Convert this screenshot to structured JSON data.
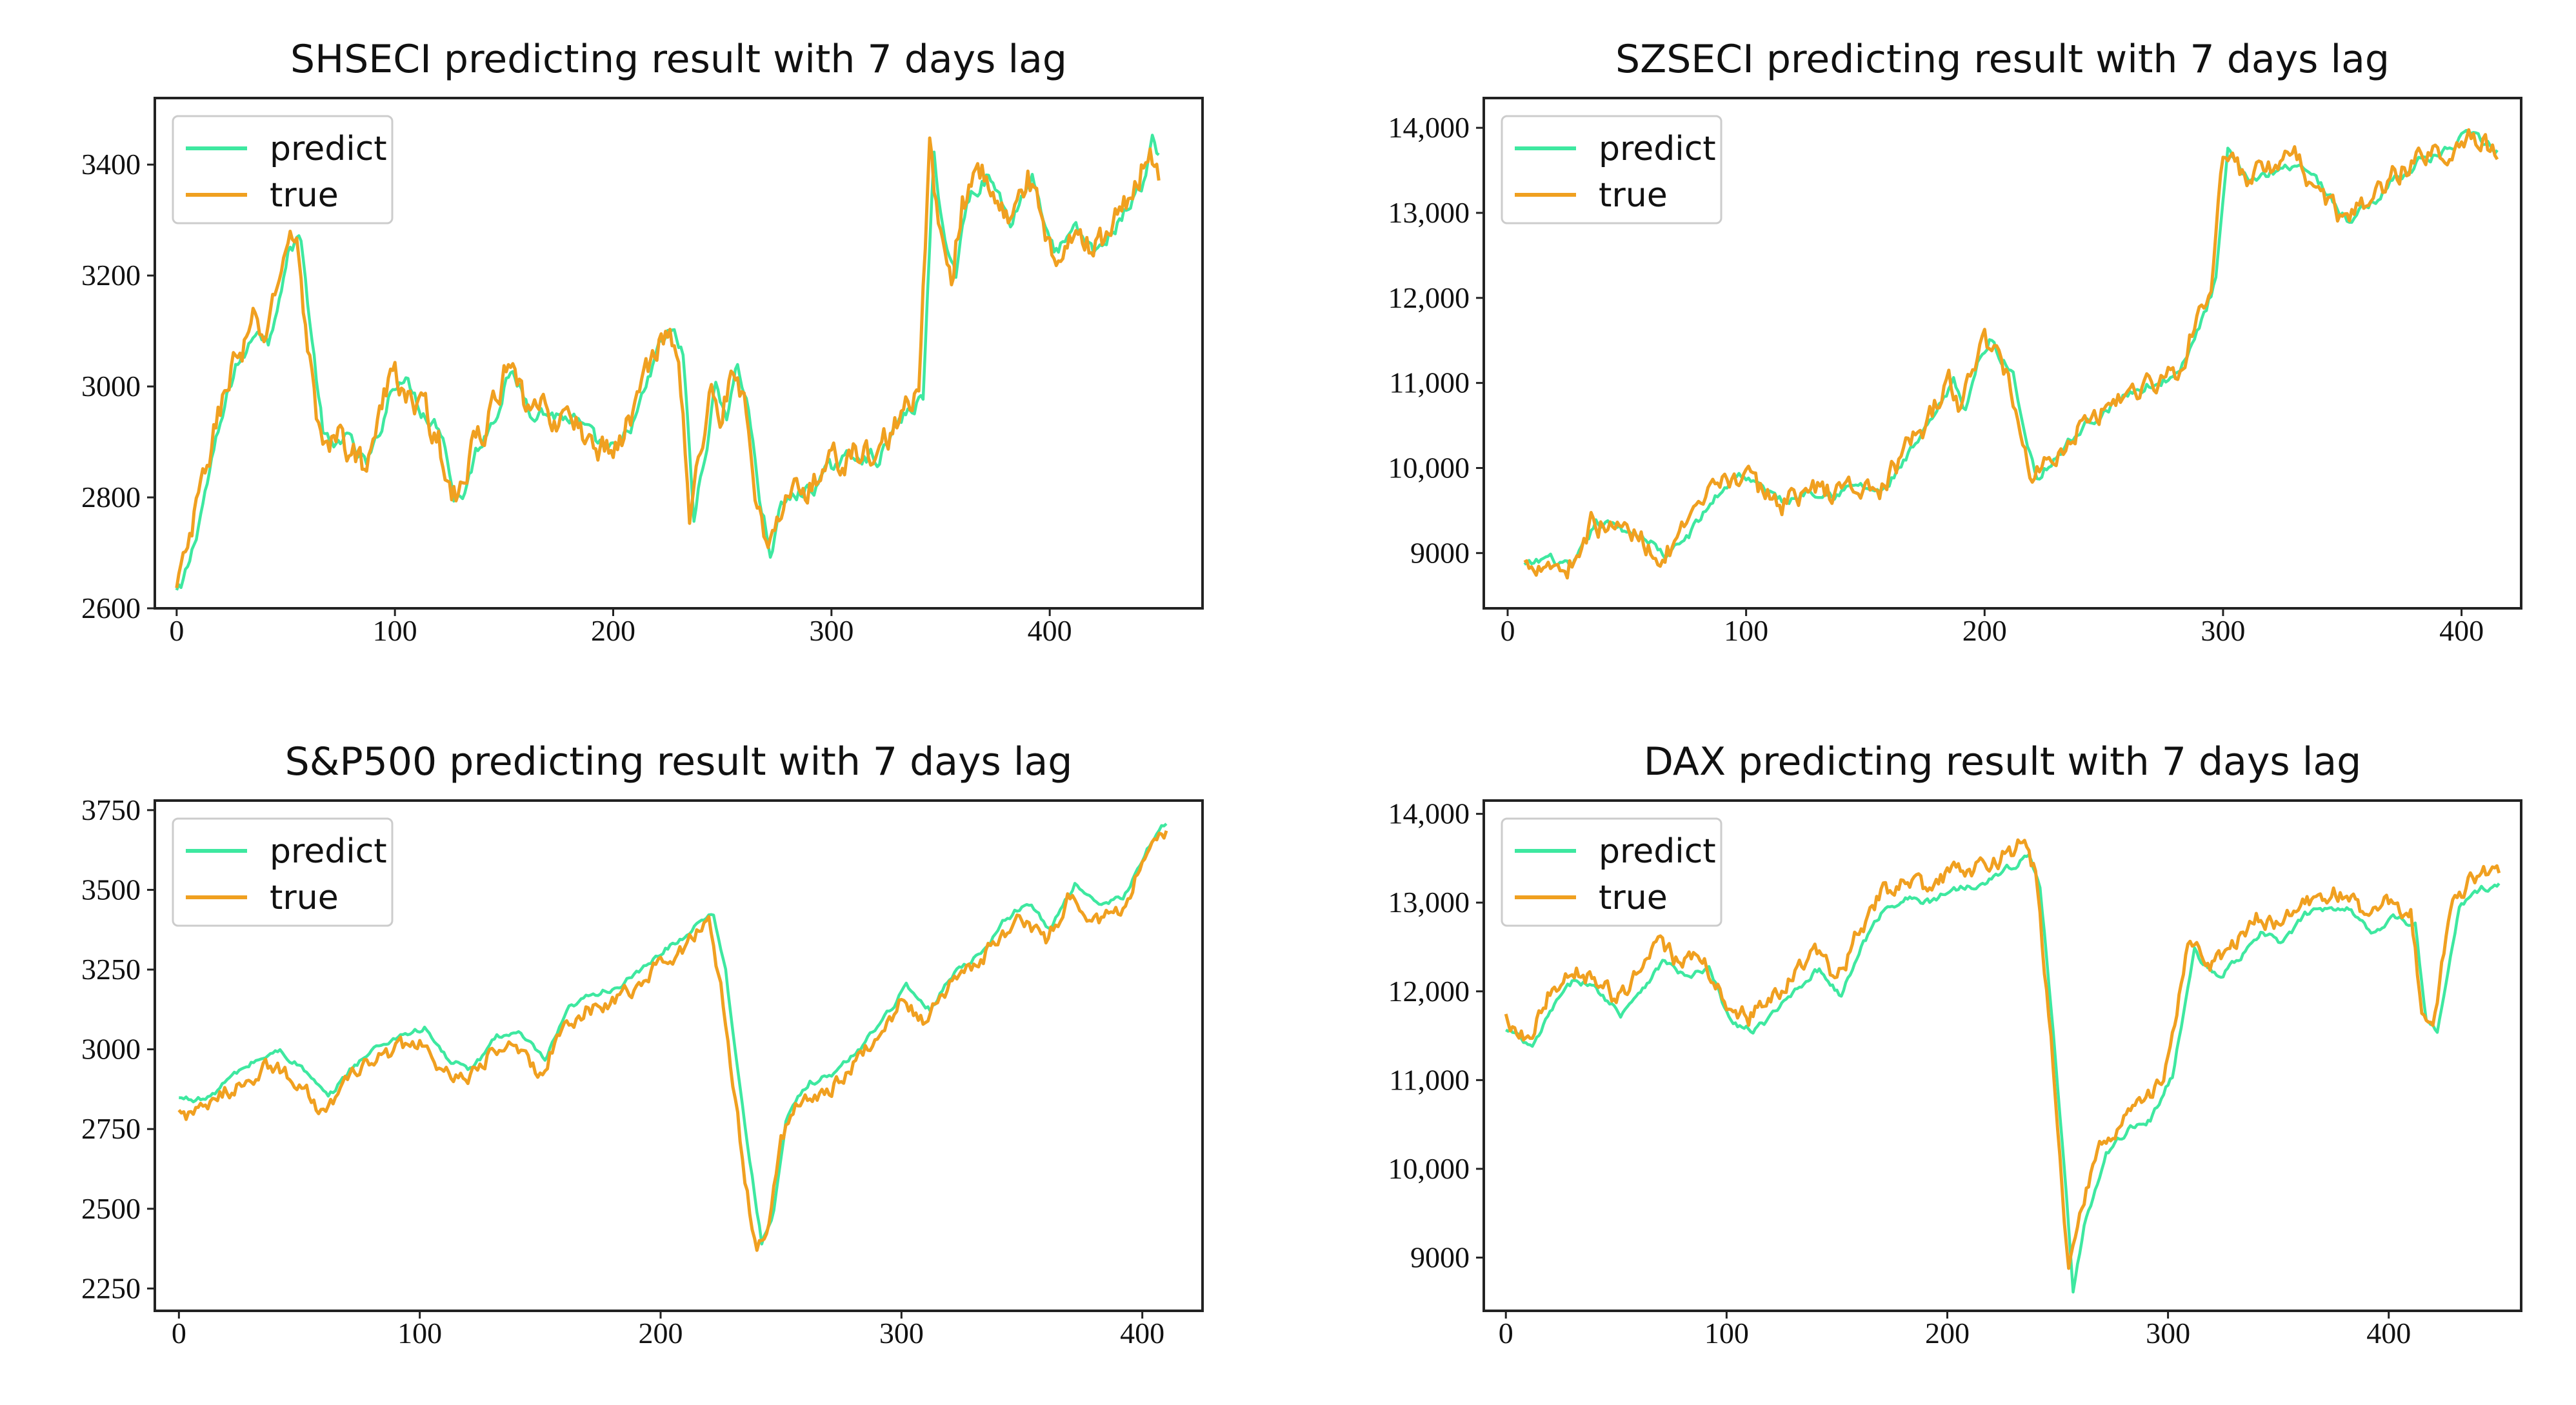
{
  "colors": {
    "predict": "#3ee8a0",
    "true": "#f0a020"
  },
  "chart_data": [
    {
      "type": "line",
      "title": "SHSECI predicting result with 7 days lag",
      "xlim": [
        -10,
        470
      ],
      "ylim": [
        2600,
        3520
      ],
      "xticks": [
        "0",
        "100",
        "200",
        "300",
        "400"
      ],
      "xtick_values": [
        0,
        100,
        200,
        300,
        400
      ],
      "yticks": [
        "2600",
        "2800",
        "3000",
        "3200",
        "3400"
      ],
      "ytick_values": [
        2600,
        2800,
        3000,
        3200,
        3400
      ],
      "legend": [
        "predict",
        "true"
      ],
      "legend_position": "upper-left",
      "anchors_x": [
        0,
        5,
        10,
        15,
        20,
        25,
        30,
        35,
        40,
        45,
        50,
        55,
        60,
        65,
        70,
        75,
        80,
        85,
        90,
        95,
        100,
        105,
        110,
        115,
        120,
        125,
        130,
        135,
        140,
        145,
        150,
        155,
        160,
        170,
        180,
        190,
        200,
        210,
        220,
        225,
        230,
        235,
        240,
        245,
        250,
        255,
        260,
        265,
        270,
        275,
        280,
        290,
        300,
        310,
        320,
        330,
        340,
        345,
        350,
        355,
        360,
        370,
        380,
        390,
        400,
        410,
        420,
        430,
        440,
        445,
        450
      ],
      "anchors_y": [
        2630,
        2700,
        2790,
        2880,
        2960,
        3040,
        3060,
        3110,
        3080,
        3170,
        3250,
        3270,
        3080,
        2920,
        2880,
        2920,
        2880,
        2860,
        2900,
        2980,
        3020,
        3000,
        2960,
        2940,
        2920,
        2800,
        2810,
        2880,
        2920,
        2960,
        3020,
        3000,
        2960,
        2950,
        2940,
        2900,
        2880,
        2960,
        3080,
        3100,
        3060,
        2760,
        2880,
        3000,
        2950,
        3040,
        2960,
        2800,
        2700,
        2780,
        2800,
        2820,
        2860,
        2880,
        2870,
        2940,
        2980,
        3420,
        3260,
        3200,
        3340,
        3380,
        3300,
        3380,
        3240,
        3280,
        3240,
        3300,
        3360,
        3440,
        3390
      ],
      "series": [
        {
          "name": "predict",
          "noise": 14,
          "lag": 2,
          "offset": 0
        },
        {
          "name": "true",
          "noise": 30,
          "lag": 0,
          "offset": 0
        }
      ]
    },
    {
      "type": "line",
      "title": "SZSECI predicting result with 7 days lag",
      "xlim": [
        -10,
        425
      ],
      "ylim": [
        8350,
        14350
      ],
      "xticks": [
        "0",
        "100",
        "200",
        "300",
        "400"
      ],
      "xtick_values": [
        0,
        100,
        200,
        300,
        400
      ],
      "yticks": [
        "9000",
        "10,000",
        "11,000",
        "12,000",
        "13,000",
        "14,000"
      ],
      "ytick_values": [
        9000,
        10000,
        11000,
        12000,
        13000,
        14000
      ],
      "legend": [
        "predict",
        "true"
      ],
      "legend_position": "upper-left",
      "anchors_x": [
        7,
        15,
        25,
        35,
        45,
        55,
        65,
        75,
        85,
        95,
        105,
        115,
        125,
        135,
        145,
        155,
        165,
        175,
        185,
        190,
        195,
        200,
        205,
        210,
        215,
        220,
        230,
        240,
        250,
        260,
        270,
        280,
        290,
        295,
        300,
        305,
        310,
        320,
        330,
        340,
        350,
        360,
        370,
        380,
        390,
        400,
        410,
        415
      ],
      "anchors_y": [
        8850,
        8950,
        8800,
        9350,
        9300,
        9200,
        8950,
        9250,
        9650,
        9950,
        9750,
        9600,
        9750,
        9700,
        9800,
        9700,
        10100,
        10500,
        11000,
        10700,
        11200,
        11500,
        11300,
        11100,
        10400,
        9900,
        10200,
        10500,
        10700,
        10900,
        11000,
        11100,
        11800,
        12200,
        13700,
        13500,
        13400,
        13500,
        13600,
        13300,
        12900,
        13100,
        13400,
        13600,
        13700,
        13900,
        13800,
        13700
      ],
      "series": [
        {
          "name": "predict",
          "noise": 60,
          "lag": 2,
          "offset": 0
        },
        {
          "name": "true",
          "noise": 150,
          "lag": 0,
          "offset": 0
        }
      ]
    },
    {
      "type": "line",
      "title": "S&P500 predicting result with 7 days lag",
      "xlim": [
        -10,
        425
      ],
      "ylim": [
        2180,
        3780
      ],
      "xticks": [
        "0",
        "100",
        "200",
        "300",
        "400"
      ],
      "xtick_values": [
        0,
        100,
        200,
        300,
        400
      ],
      "yticks": [
        "2250",
        "2500",
        "2750",
        "3000",
        "3250",
        "3500",
        "3750"
      ],
      "ytick_values": [
        2250,
        2500,
        2750,
        3000,
        3250,
        3500,
        3750
      ],
      "legend": [
        "predict",
        "true"
      ],
      "legend_position": "upper-left",
      "anchors_x": [
        0,
        10,
        20,
        30,
        40,
        50,
        60,
        70,
        80,
        90,
        100,
        110,
        120,
        130,
        140,
        150,
        160,
        170,
        180,
        190,
        200,
        210,
        215,
        220,
        225,
        230,
        235,
        240,
        245,
        250,
        255,
        260,
        270,
        280,
        290,
        300,
        310,
        320,
        330,
        340,
        350,
        360,
        370,
        380,
        390,
        400,
        410
      ],
      "anchors_y": [
        2800,
        2800,
        2870,
        2920,
        2950,
        2890,
        2800,
        2900,
        2960,
        3000,
        3020,
        2920,
        2890,
        3000,
        3000,
        2920,
        3080,
        3130,
        3150,
        3200,
        3270,
        3320,
        3370,
        3380,
        3200,
        2900,
        2600,
        2350,
        2450,
        2720,
        2800,
        2850,
        2880,
        2950,
        3050,
        3150,
        3080,
        3200,
        3250,
        3350,
        3420,
        3330,
        3480,
        3400,
        3430,
        3580,
        3690
      ],
      "series": [
        {
          "name": "predict",
          "noise": 10,
          "lag": 2,
          "offset": 45
        },
        {
          "name": "true",
          "noise": 28,
          "lag": 0,
          "offset": 0
        }
      ]
    },
    {
      "type": "line",
      "title": "DAX predicting result with 7 days lag",
      "xlim": [
        -10,
        460
      ],
      "ylim": [
        8400,
        14150
      ],
      "xticks": [
        "0",
        "100",
        "200",
        "300",
        "400"
      ],
      "xtick_values": [
        0,
        100,
        200,
        300,
        400
      ],
      "yticks": [
        "9000",
        "10,000",
        "11,000",
        "12,000",
        "13,000",
        "14,000"
      ],
      "ytick_values": [
        9000,
        10000,
        11000,
        12000,
        13000,
        14000
      ],
      "legend": [
        "predict",
        "true"
      ],
      "legend_position": "upper-left",
      "anchors_x": [
        0,
        10,
        20,
        30,
        40,
        50,
        60,
        70,
        80,
        90,
        100,
        110,
        120,
        130,
        140,
        150,
        160,
        170,
        180,
        190,
        200,
        210,
        220,
        230,
        235,
        240,
        245,
        250,
        255,
        260,
        265,
        270,
        280,
        290,
        300,
        310,
        320,
        330,
        340,
        350,
        360,
        370,
        380,
        390,
        400,
        410,
        415,
        420,
        430,
        440,
        450
      ],
      "anchors_y": [
        11700,
        11500,
        12000,
        12300,
        12150,
        11900,
        12200,
        12500,
        12300,
        12400,
        11800,
        11700,
        11900,
        12200,
        12400,
        12100,
        12700,
        13100,
        13200,
        13150,
        13300,
        13350,
        13450,
        13600,
        13700,
        13300,
        12000,
        10500,
        8800,
        9500,
        9900,
        10300,
        10600,
        10700,
        11200,
        12600,
        12300,
        12500,
        12800,
        12700,
        13000,
        13100,
        13100,
        12800,
        13000,
        12900,
        11800,
        11700,
        13100,
        13300,
        13350
      ],
      "series": [
        {
          "name": "predict",
          "noise": 40,
          "lag": 2,
          "offset": -150
        },
        {
          "name": "true",
          "noise": 110,
          "lag": 0,
          "offset": 0
        }
      ]
    }
  ]
}
